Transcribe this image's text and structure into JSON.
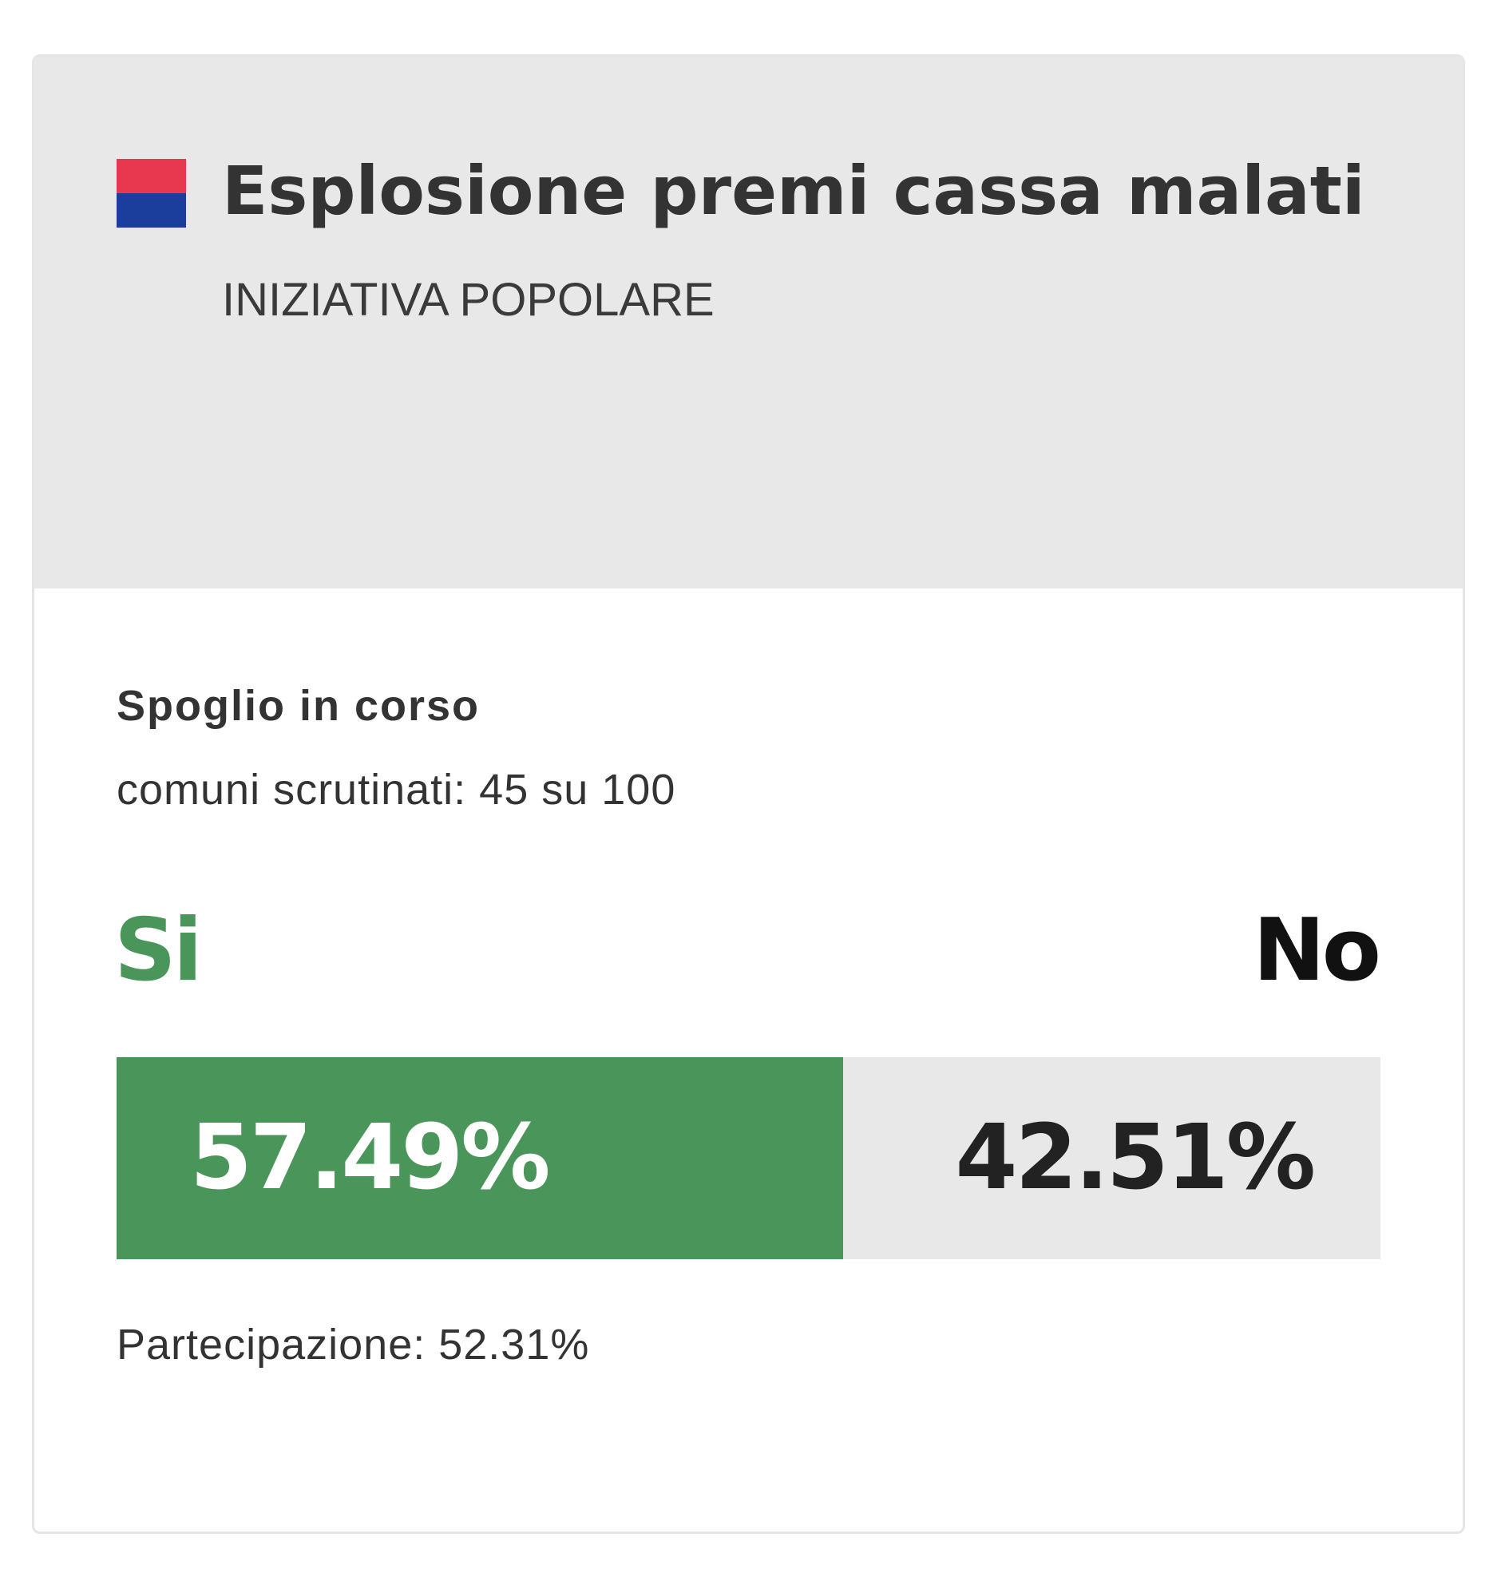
{
  "header": {
    "title": "Esplosione premi cassa malati",
    "subtitle": "INIZIATIVA POPOLARE",
    "flag": {
      "icon": "flag-icon",
      "top_color": "#e8384f",
      "bottom_color": "#1b3e9c"
    }
  },
  "status": {
    "title": "Spoglio in corso",
    "count": "comuni scrutinati: 45 su 100"
  },
  "result": {
    "yes_label": "Si",
    "no_label": "No",
    "yes_percent_text": "57.49%",
    "no_percent_text": "42.51%",
    "yes_fraction": 0.5749,
    "yes_color": "#4a9559",
    "no_bar_color": "#e8e8e8"
  },
  "turnout": "Partecipazione: 52.31%"
}
